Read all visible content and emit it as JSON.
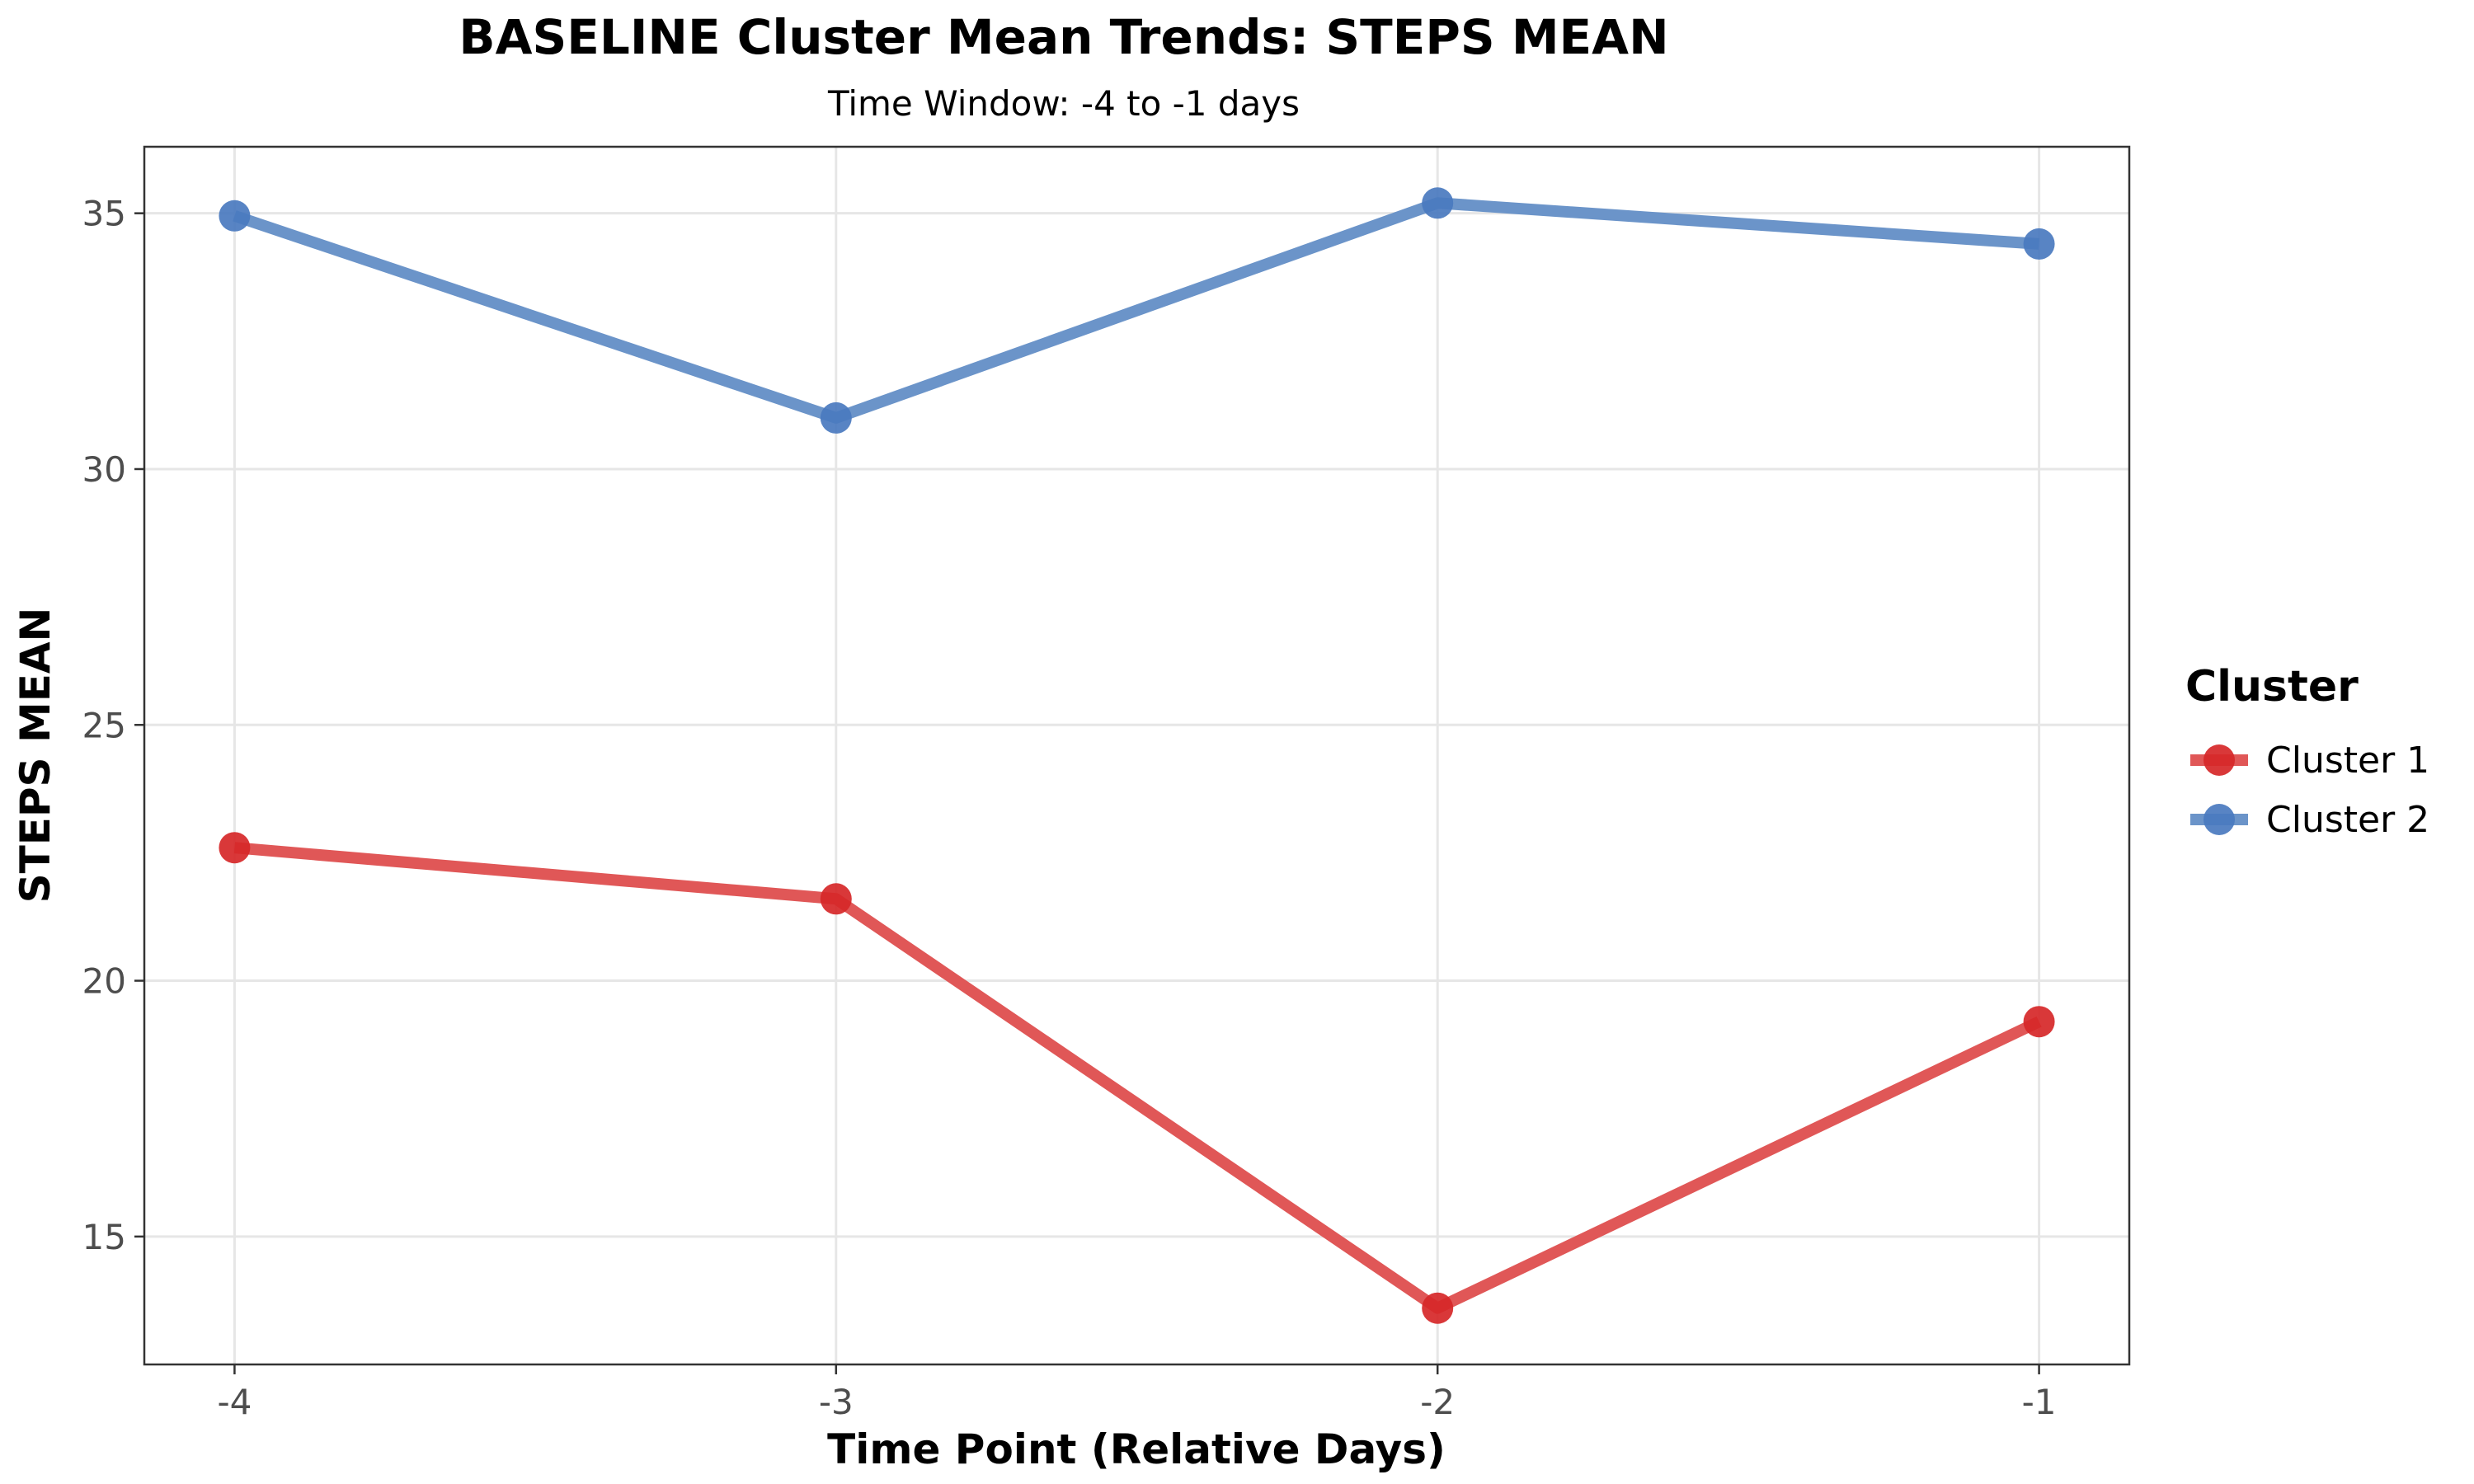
{
  "chart_data": {
    "type": "line",
    "title": "BASELINE Cluster Mean Trends: STEPS MEAN",
    "subtitle": "Time Window: -4 to -1 days",
    "xlabel": "Time Point (Relative Days)",
    "ylabel": "STEPS MEAN",
    "x": [
      -4,
      -3,
      -2,
      -1
    ],
    "x_tick_labels": [
      "-4",
      "-3",
      "-2",
      "-1"
    ],
    "xlim": [
      -4.15,
      -0.85
    ],
    "ylim": [
      12.5,
      36.3
    ],
    "y_ticks": [
      15,
      20,
      25,
      30,
      35
    ],
    "y_tick_labels": [
      "15",
      "20",
      "25",
      "30",
      "35"
    ],
    "grid": true,
    "legend": {
      "title": "Cluster",
      "position": "right"
    },
    "series": [
      {
        "name": "Cluster 1",
        "color": "#d62728",
        "line_color": "#e05757",
        "values": [
          22.6,
          21.6,
          13.6,
          19.2
        ]
      },
      {
        "name": "Cluster 2",
        "color": "#4a7abf",
        "line_color": "#6b94c9",
        "values": [
          34.95,
          31.0,
          35.2,
          34.4
        ]
      }
    ]
  }
}
